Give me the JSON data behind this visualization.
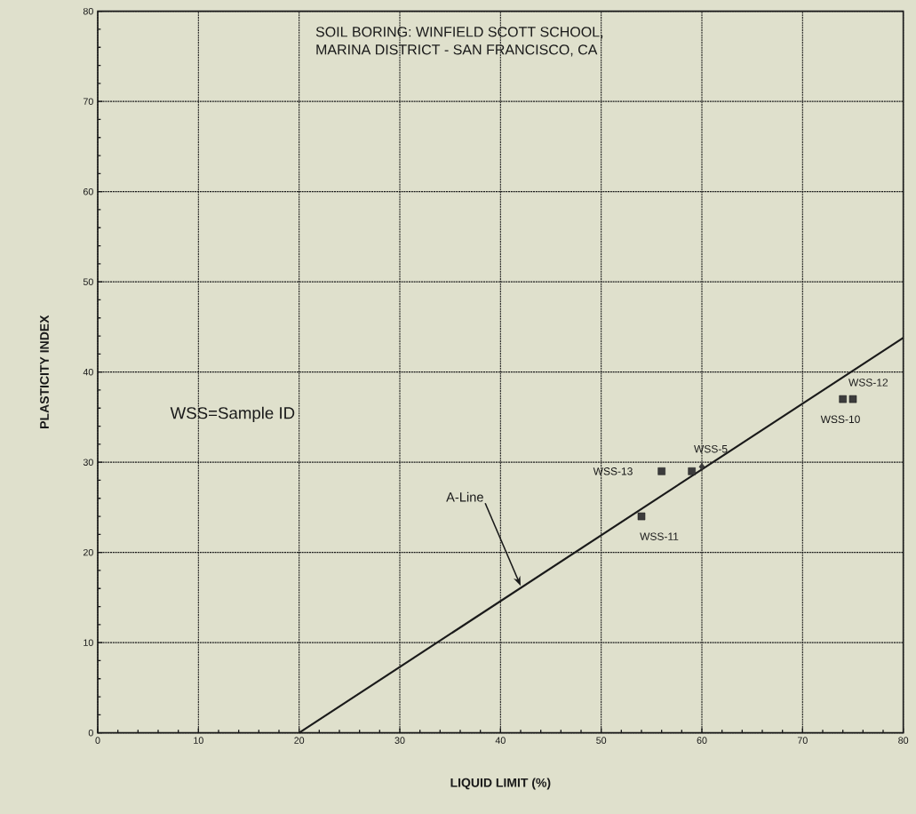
{
  "chart_data": {
    "type": "scatter",
    "title": "SOIL BORING: WINFIELD SCOTT SCHOOL,",
    "subtitle": "MARINA DISTRICT - SAN FRANCISCO, CA",
    "xlabel": "LIQUID LIMIT (%)",
    "ylabel": "PLASTICITY INDEX",
    "xlim": [
      0,
      80
    ],
    "ylim": [
      0,
      80
    ],
    "xticks": [
      0,
      10,
      20,
      30,
      40,
      50,
      60,
      70,
      80
    ],
    "yticks": [
      0,
      10,
      20,
      30,
      40,
      50,
      60,
      70,
      80
    ],
    "grid": true,
    "series": [
      {
        "type": "line",
        "color": "#1a1a1a",
        "marker": "none",
        "line_style": "solid",
        "x": [
          20,
          80
        ],
        "values": [
          0,
          43.8
        ]
      },
      {
        "color": "#1a1a1a",
        "marker": "square",
        "x": [
          56,
          59,
          54,
          74,
          75
        ],
        "values": [
          29,
          29,
          24,
          37,
          37
        ]
      },
      {
        "color": "#1a1a1a",
        "marker": "diamond",
        "x": [
          60
        ],
        "values": [
          29.5
        ]
      }
    ],
    "annotations": [
      "WSS=Sample ID",
      {
        "text": "A-Line",
        "x": 42,
        "y": 16.3
      },
      {
        "text": "WSS-13",
        "x": 56,
        "y": 29
      },
      {
        "text": "WSS-5",
        "x": 60,
        "y": 29.5
      },
      {
        "text": "WSS-11",
        "x": 54,
        "y": 24
      },
      {
        "text": "WSS-12",
        "x": 75,
        "y": 37
      },
      {
        "text": "WSS-10",
        "x": 74,
        "y": 37
      }
    ]
  }
}
